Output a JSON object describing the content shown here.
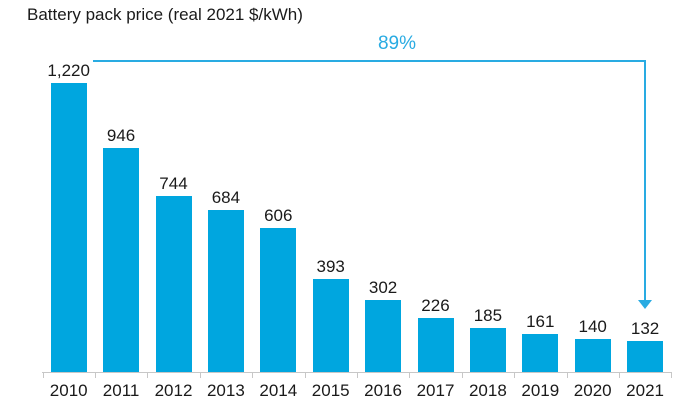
{
  "chart_data": {
    "type": "bar",
    "title": "Battery pack price (real 2021 $/kWh)",
    "categories": [
      "2010",
      "2011",
      "2012",
      "2013",
      "2014",
      "2015",
      "2016",
      "2017",
      "2018",
      "2019",
      "2020",
      "2021"
    ],
    "values": [
      1220,
      946,
      744,
      684,
      606,
      393,
      302,
      226,
      185,
      161,
      140,
      132
    ],
    "value_labels": [
      "1,220",
      "946",
      "744",
      "684",
      "606",
      "393",
      "302",
      "226",
      "185",
      "161",
      "140",
      "132"
    ],
    "xlabel": "",
    "ylabel": "",
    "grid": false,
    "legend": false,
    "annotation": {
      "text": "89%",
      "from_category": "2010",
      "to_category": "2021"
    },
    "colors": {
      "bar": "#00A6DF",
      "annotation": "#29ABE2",
      "axis": "#C7C7C7",
      "text": "#1A1A1A"
    }
  }
}
